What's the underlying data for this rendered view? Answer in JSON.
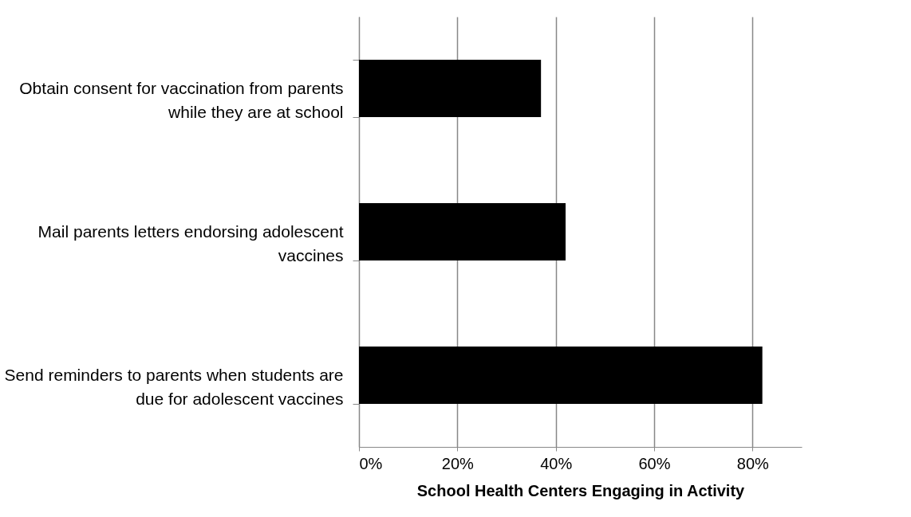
{
  "chart_data": {
    "type": "bar",
    "orientation": "horizontal",
    "xlabel": "School Health Centers Engaging in Activity",
    "categories": [
      "Obtain consent for vaccination from parents while they are at school",
      "Mail parents letters endorsing adolescent vaccines",
      "Send reminders to parents when students are due for adolescent vaccines"
    ],
    "values": [
      37,
      42,
      82
    ],
    "color": "#000000",
    "xlim": [
      0,
      90
    ],
    "xticks": [
      {
        "value": 0,
        "label": "0%"
      },
      {
        "value": 20,
        "label": "20%"
      },
      {
        "value": 40,
        "label": "40%"
      },
      {
        "value": 60,
        "label": "60%"
      },
      {
        "value": 80,
        "label": "80%"
      }
    ],
    "grid": "x"
  }
}
